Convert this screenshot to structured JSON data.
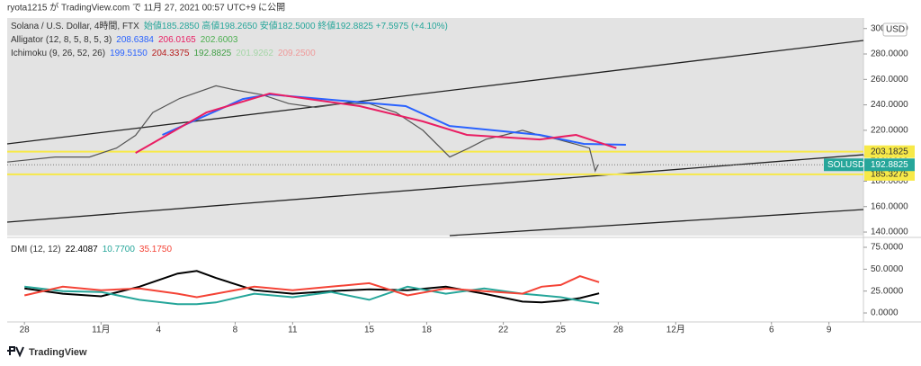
{
  "header": "ryota1215 が TradingView.com で 11月 27, 2021 00:57 UTC+9 に公開",
  "footer": "TradingView",
  "chart_data": [
    {
      "type": "line",
      "legend": [
        [
          {
            "text": "Solana / U.S. Dollar, 4時間, FTX",
            "color": "#333333"
          },
          {
            "text": "始値185.2850 高値198.2650 安値182.5000 終値192.8825 +7.5975 (+4.10%)",
            "color": "#26a69a"
          }
        ],
        [
          {
            "text": "Alligator (12, 8, 5, 8, 5, 3)",
            "color": "#333333"
          },
          {
            "text": "208.6384",
            "color": "#2962ff"
          },
          {
            "text": "206.0165",
            "color": "#e91e63"
          },
          {
            "text": "202.6003",
            "color": "#4caf50"
          }
        ],
        [
          {
            "text": "Ichimoku (9, 26, 52, 26)",
            "color": "#333333"
          },
          {
            "text": "199.5150",
            "color": "#2962ff"
          },
          {
            "text": "204.3375",
            "color": "#b71c1c"
          },
          {
            "text": "192.8825",
            "color": "#43a047"
          },
          {
            "text": "201.9262",
            "color": "#a5d6a7"
          },
          {
            "text": "209.2500",
            "color": "#ef9a9a"
          }
        ]
      ],
      "currency": "USD",
      "symbol": "SOLUSD",
      "xlim": [
        -0.9,
        43.8
      ],
      "ylim": [
        137.2,
        308.3
      ],
      "yticks": [
        {
          "value": 140,
          "label": "140.0000"
        },
        {
          "value": 160,
          "label": "160.0000"
        },
        {
          "value": 180,
          "label": "180.0000"
        },
        {
          "value": 200,
          "label": "200.0000"
        },
        {
          "value": 220,
          "label": "220.0000"
        },
        {
          "value": 240,
          "label": "240.0000"
        },
        {
          "value": 260,
          "label": "260.0000"
        },
        {
          "value": 280,
          "label": "280.0000"
        },
        {
          "value": 300,
          "label": "300.0000"
        }
      ],
      "series": [
        {
          "color": "#555555",
          "x": [
            -0.9,
            1.6,
            3.4,
            4.8,
            5.8,
            6.7,
            8.1,
            10,
            10.9,
            12.4,
            13.8,
            15.2,
            16.6,
            18,
            19.4,
            20.8,
            22.2,
            23.2,
            24.1,
            25,
            26,
            26.9,
            27.8,
            28.8,
            29.5,
            29.8,
            29.95
          ],
          "values": [
            195,
            199,
            199,
            206,
            216,
            234,
            245,
            255,
            252,
            248,
            241,
            238,
            241,
            241,
            234,
            220,
            199,
            206,
            213,
            216,
            220,
            216,
            213,
            209,
            206,
            188,
            192.8825
          ]
        },
        {
          "color": "#2962ff",
          "x": [
            7.2,
            11.4,
            12.8,
            19.9,
            22.2,
            26.9,
            29.2,
            31.4
          ],
          "values": [
            216.4,
            244.6,
            248.2,
            239,
            223.4,
            216.4,
            209.3,
            208.6384
          ]
        },
        {
          "color": "#e91e63",
          "x": [
            5.8,
            9.5,
            12.8,
            17.5,
            20.8,
            23.1,
            26.9,
            28.8,
            30.9
          ],
          "values": [
            202.2,
            234,
            248.9,
            239,
            227,
            216.4,
            212.8,
            216.4,
            206.0165
          ]
        }
      ],
      "trend_lines": [
        {
          "color": "#222222",
          "x": [
            -0.9,
            43.8
          ],
          "values": [
            209.3,
            290.6
          ]
        },
        {
          "color": "#222222",
          "x": [
            -0.9,
            43.8
          ],
          "values": [
            147.8,
            200.8
          ]
        },
        {
          "color": "#222222",
          "x": [
            22.2,
            43.8
          ],
          "values": [
            137.2,
            157.7
          ]
        }
      ],
      "levels": [
        {
          "value": 203.1825,
          "color": "#f7e948"
        },
        {
          "value": 185.3275,
          "color": "#f7e948"
        }
      ],
      "last_price": 192.8825,
      "grid": false
    },
    {
      "type": "line",
      "legend": [
        [
          {
            "text": "DMI (12, 12)",
            "color": "#333333"
          },
          {
            "text": "22.4087",
            "color": "#000000"
          },
          {
            "text": "10.7700",
            "color": "#26a69a"
          },
          {
            "text": "35.1750",
            "color": "#f44336"
          }
        ]
      ],
      "xlim": [
        -0.9,
        43.8
      ],
      "xticks": [
        {
          "value": 0,
          "label": "28"
        },
        {
          "value": 4,
          "label": "11月"
        },
        {
          "value": 7,
          "label": "4"
        },
        {
          "value": 11,
          "label": "8"
        },
        {
          "value": 14,
          "label": "11"
        },
        {
          "value": 18,
          "label": "15"
        },
        {
          "value": 21,
          "label": "18"
        },
        {
          "value": 25,
          "label": "22"
        },
        {
          "value": 28,
          "label": "25"
        },
        {
          "value": 31,
          "label": "28"
        },
        {
          "value": 34,
          "label": "12月"
        },
        {
          "value": 39,
          "label": "6"
        },
        {
          "value": 42,
          "label": "9"
        }
      ],
      "ylim": [
        -8.2,
        82.2
      ],
      "yticks": [
        {
          "value": 0,
          "label": "0.0000"
        },
        {
          "value": 25,
          "label": "25.0000"
        },
        {
          "value": 50,
          "label": "50.0000"
        },
        {
          "value": 75,
          "label": "75.0000"
        }
      ],
      "series": [
        {
          "color": "#000000",
          "x": [
            0,
            2,
            4,
            6,
            8,
            9,
            10,
            12,
            14,
            16,
            18,
            20,
            22,
            24,
            26,
            27,
            28,
            29,
            30
          ],
          "values": [
            28,
            22,
            19,
            30,
            45,
            48,
            40,
            26,
            22,
            25,
            27,
            26,
            30,
            22,
            13,
            12,
            14,
            17,
            22.4087
          ]
        },
        {
          "color": "#26a69a",
          "x": [
            0,
            2,
            4,
            6,
            8,
            9,
            10,
            12,
            14,
            16,
            18,
            20,
            22,
            24,
            26,
            27,
            28,
            29,
            30
          ],
          "values": [
            30,
            25,
            24,
            15,
            10,
            10,
            12,
            22,
            18,
            24,
            15,
            30,
            22,
            28,
            22,
            20,
            18,
            14,
            10.77
          ]
        },
        {
          "color": "#f44336",
          "x": [
            0,
            2,
            4,
            6,
            8,
            9,
            10,
            12,
            14,
            16,
            18,
            20,
            22,
            24,
            26,
            27,
            28,
            29,
            30
          ],
          "values": [
            20,
            30,
            26,
            28,
            22,
            18,
            22,
            30,
            26,
            30,
            34,
            20,
            28,
            25,
            22,
            30,
            32,
            42,
            35.175
          ]
        }
      ],
      "grid": false
    }
  ]
}
